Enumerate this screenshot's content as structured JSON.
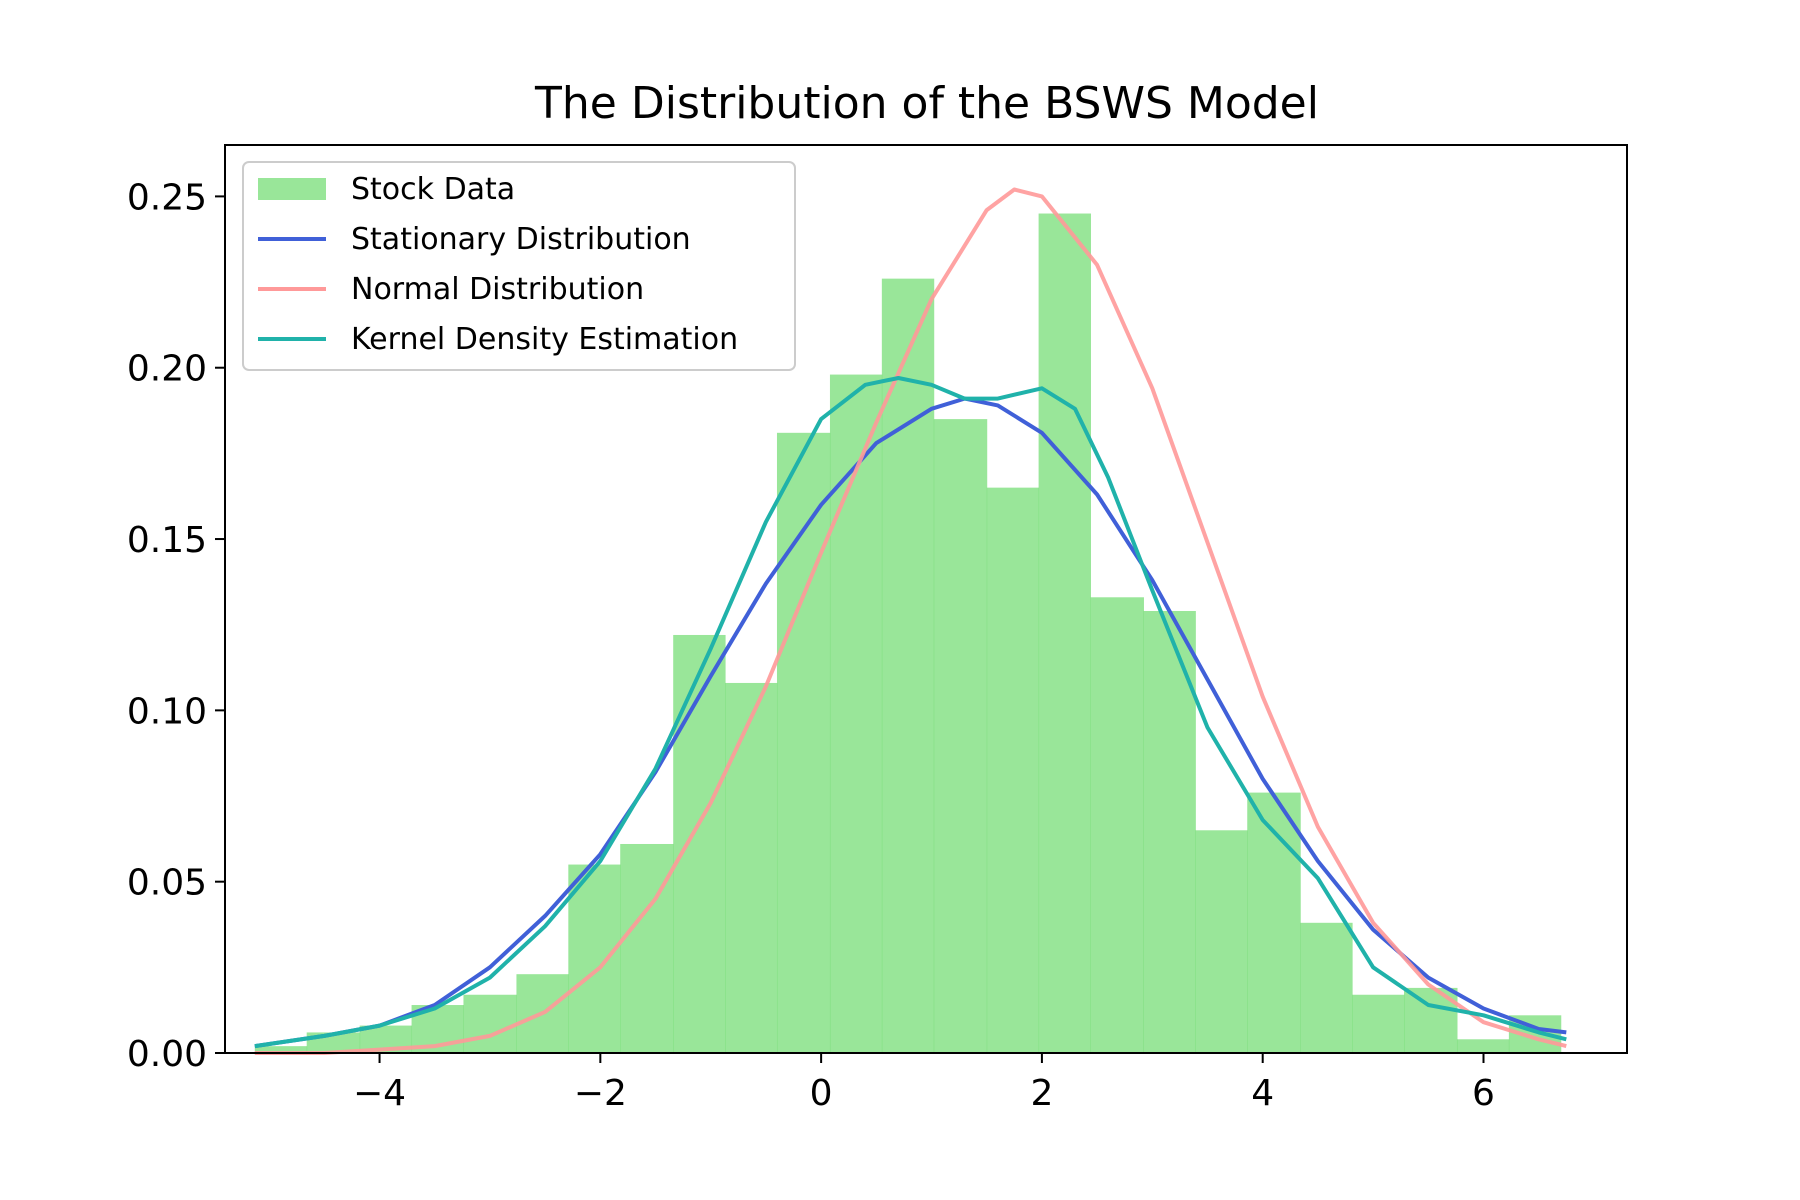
{
  "chart_data": {
    "type": "bar",
    "title": "The Distribution of the BSWS Model",
    "xlabel": "",
    "ylabel": "",
    "xlim": [
      -5.4,
      7.3
    ],
    "ylim": [
      0,
      0.265
    ],
    "grid": false,
    "legend_placement": "upper-left",
    "x_ticks": [
      -4,
      -2,
      0,
      2,
      4,
      6
    ],
    "x_tick_labels": [
      "−4",
      "−2",
      "0",
      "2",
      "4",
      "6"
    ],
    "y_ticks": [
      0,
      0.05,
      0.1,
      0.15,
      0.2,
      0.25
    ],
    "y_tick_labels": [
      "0.00",
      "0.05",
      "0.10",
      "0.15",
      "0.20",
      "0.25"
    ],
    "histogram": {
      "name": "Stock Data",
      "color": "#77dd77",
      "bin_edges": [
        -5.13,
        -4.66,
        -4.18,
        -3.71,
        -3.24,
        -2.76,
        -2.29,
        -1.82,
        -1.34,
        -0.87,
        -0.4,
        0.08,
        0.55,
        1.02,
        1.5,
        1.97,
        2.44,
        2.92,
        3.39,
        3.86,
        4.34,
        4.81,
        5.28,
        5.76,
        6.23,
        6.7
      ],
      "values": [
        0.002,
        0.006,
        0.008,
        0.014,
        0.017,
        0.023,
        0.055,
        0.061,
        0.122,
        0.108,
        0.181,
        0.198,
        0.226,
        0.185,
        0.165,
        0.245,
        0.133,
        0.129,
        0.065,
        0.076,
        0.038,
        0.017,
        0.019,
        0.004,
        0.011
      ]
    },
    "series": [
      {
        "name": "Stationary Distribution",
        "color": "#4060d8",
        "x": [
          -5.13,
          -4.5,
          -4.0,
          -3.5,
          -3.0,
          -2.5,
          -2.0,
          -1.5,
          -1.0,
          -0.5,
          0.0,
          0.5,
          1.0,
          1.3,
          1.6,
          2.0,
          2.5,
          3.0,
          3.5,
          4.0,
          4.5,
          5.0,
          5.5,
          6.0,
          6.5,
          6.75
        ],
        "y": [
          0.002,
          0.005,
          0.008,
          0.014,
          0.025,
          0.04,
          0.058,
          0.082,
          0.11,
          0.137,
          0.16,
          0.178,
          0.188,
          0.191,
          0.189,
          0.181,
          0.163,
          0.138,
          0.109,
          0.08,
          0.056,
          0.036,
          0.022,
          0.013,
          0.007,
          0.006
        ]
      },
      {
        "name": "Normal Distribution",
        "color": "#ff9999",
        "x": [
          -5.13,
          -4.5,
          -4.0,
          -3.5,
          -3.0,
          -2.5,
          -2.0,
          -1.5,
          -1.0,
          -0.5,
          0.0,
          0.5,
          1.0,
          1.5,
          1.75,
          2.0,
          2.5,
          3.0,
          3.5,
          4.0,
          4.5,
          5.0,
          5.5,
          6.0,
          6.5,
          6.75
        ],
        "y": [
          0.0,
          0.0,
          0.001,
          0.002,
          0.005,
          0.012,
          0.025,
          0.045,
          0.073,
          0.107,
          0.146,
          0.184,
          0.22,
          0.246,
          0.252,
          0.25,
          0.23,
          0.194,
          0.149,
          0.104,
          0.066,
          0.038,
          0.02,
          0.009,
          0.004,
          0.002
        ]
      },
      {
        "name": "Kernel Density Estimation",
        "color": "#20b2aa",
        "x": [
          -5.13,
          -4.5,
          -4.0,
          -3.5,
          -3.0,
          -2.5,
          -2.0,
          -1.5,
          -1.0,
          -0.5,
          0.0,
          0.4,
          0.7,
          1.0,
          1.3,
          1.6,
          2.0,
          2.3,
          2.6,
          3.0,
          3.5,
          4.0,
          4.5,
          5.0,
          5.5,
          6.0,
          6.5,
          6.75
        ],
        "y": [
          0.002,
          0.005,
          0.008,
          0.013,
          0.022,
          0.037,
          0.056,
          0.083,
          0.118,
          0.155,
          0.185,
          0.195,
          0.197,
          0.195,
          0.191,
          0.191,
          0.194,
          0.188,
          0.168,
          0.135,
          0.095,
          0.068,
          0.051,
          0.025,
          0.014,
          0.011,
          0.006,
          0.004
        ]
      }
    ]
  }
}
